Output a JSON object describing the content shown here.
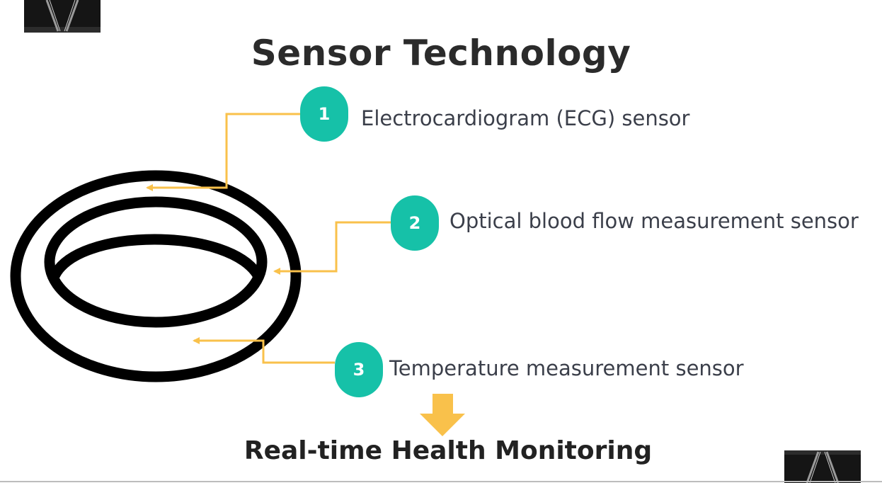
{
  "title": "Sensor Technology",
  "sensors": [
    {
      "number": "1",
      "label": "Electrocardiogram (ECG) sensor"
    },
    {
      "number": "2",
      "label": "Optical blood flow measurement sensor"
    },
    {
      "number": "3",
      "label": "Temperature measurement sensor"
    }
  ],
  "outcome": "Real-time Health Monitoring",
  "colors": {
    "badge": "#16c1a8",
    "connector": "#f9c14b",
    "down_arrow": "#f9c14b",
    "ring": "#000000",
    "text": "#3b3f4a"
  },
  "icons": [
    "binder-clip-icon",
    "ring-icon",
    "down-arrow-icon"
  ]
}
